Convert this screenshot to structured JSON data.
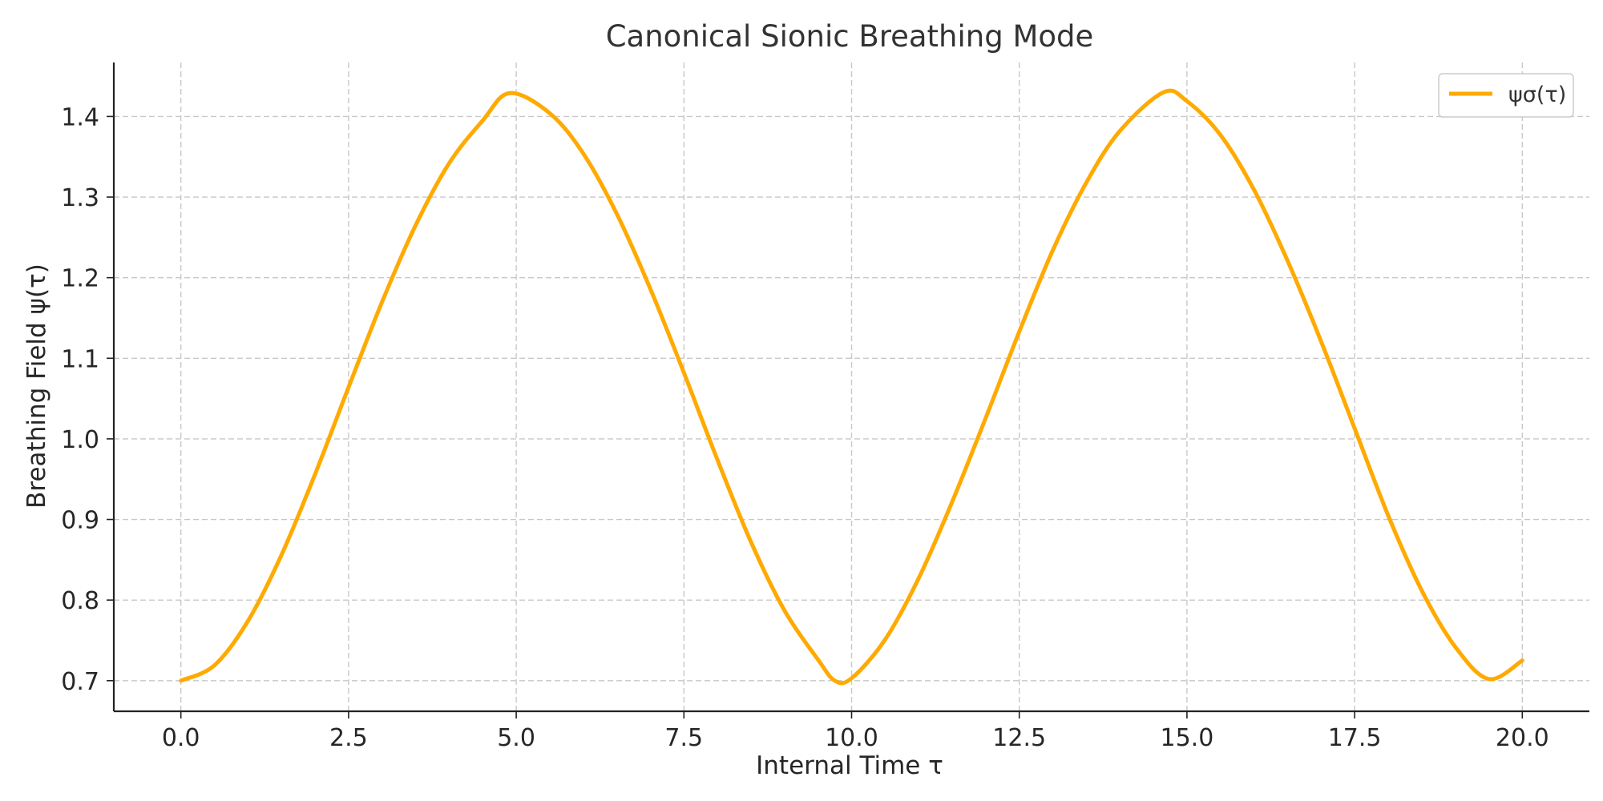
{
  "chart_data": {
    "type": "line",
    "title": "Canonical Sionic Breathing Mode",
    "xlabel": "Internal Time τ",
    "ylabel": "Breathing Field ψ(τ)",
    "xlim": [
      -1.0,
      21.0
    ],
    "ylim": [
      0.662,
      1.467
    ],
    "xticks": [
      0.0,
      2.5,
      5.0,
      7.5,
      10.0,
      12.5,
      15.0,
      17.5,
      20.0
    ],
    "xtick_labels": [
      "0.0",
      "2.5",
      "5.0",
      "7.5",
      "10.0",
      "12.5",
      "15.0",
      "17.5",
      "20.0"
    ],
    "yticks": [
      0.7,
      0.8,
      0.9,
      1.0,
      1.1,
      1.2,
      1.3,
      1.4
    ],
    "ytick_labels": [
      "0.7",
      "0.8",
      "0.9",
      "1.0",
      "1.1",
      "1.2",
      "1.3",
      "1.4"
    ],
    "grid": true,
    "legend_position": "top-right",
    "series": [
      {
        "name": "ψσ(τ)",
        "color": "#FFAA00",
        "x": [
          0.0,
          0.5,
          1.0,
          1.5,
          2.0,
          2.5,
          3.0,
          3.5,
          4.0,
          4.5,
          4.9,
          5.5,
          6.0,
          6.5,
          7.0,
          7.5,
          8.0,
          8.5,
          9.0,
          9.5,
          9.75,
          10.0,
          10.5,
          11.0,
          11.5,
          12.0,
          12.5,
          13.0,
          13.5,
          14.0,
          14.65,
          15.0,
          15.5,
          16.0,
          16.5,
          17.0,
          17.5,
          18.0,
          18.5,
          19.0,
          19.5,
          20.0
        ],
        "y": [
          0.7,
          0.719,
          0.774,
          0.856,
          0.956,
          1.064,
          1.17,
          1.265,
          1.342,
          1.395,
          1.429,
          1.404,
          1.354,
          1.279,
          1.186,
          1.082,
          0.974,
          0.872,
          0.787,
          0.726,
          0.7,
          0.703,
          0.751,
          0.827,
          0.922,
          1.026,
          1.133,
          1.234,
          1.318,
          1.382,
          1.43,
          1.419,
          1.377,
          1.309,
          1.221,
          1.121,
          1.013,
          0.905,
          0.812,
          0.742,
          0.702,
          0.725
        ]
      }
    ]
  }
}
